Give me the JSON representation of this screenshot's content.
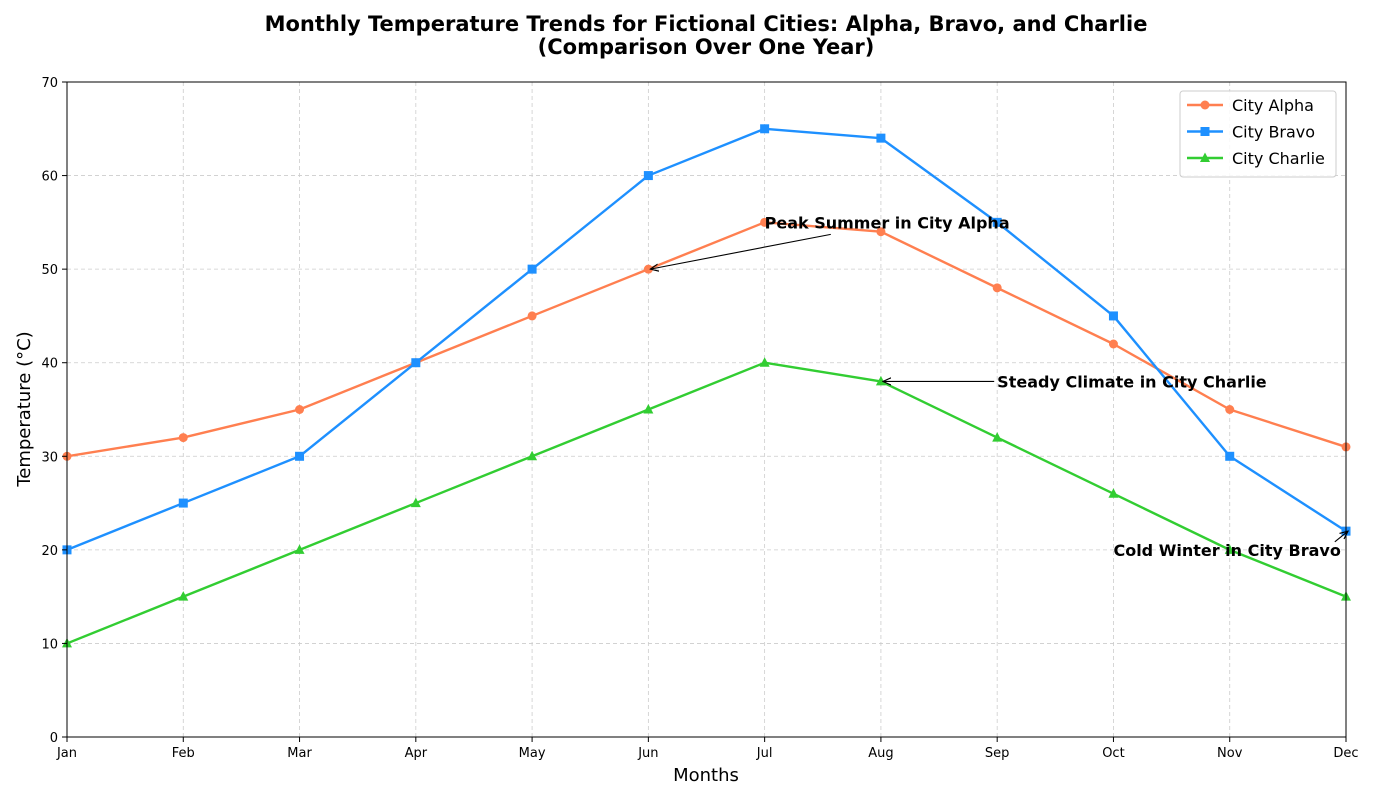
{
  "chart_data": {
    "type": "line",
    "title": "Monthly Temperature Trends for Fictional Cities: Alpha, Bravo, and Charlie",
    "subtitle": "(Comparison Over One Year)",
    "xlabel": "Months",
    "ylabel": "Temperature (°C)",
    "categories": [
      "Jan",
      "Feb",
      "Mar",
      "Apr",
      "May",
      "Jun",
      "Jul",
      "Aug",
      "Sep",
      "Oct",
      "Nov",
      "Dec"
    ],
    "ylim": [
      0,
      70
    ],
    "yticks": [
      0,
      10,
      20,
      30,
      40,
      50,
      60,
      70
    ],
    "grid": true,
    "legend_position": "top-right",
    "series": [
      {
        "name": "City Alpha",
        "color": "#FF7F50",
        "marker": "circle",
        "values": [
          30,
          32,
          35,
          40,
          45,
          50,
          55,
          54,
          48,
          42,
          35,
          31
        ]
      },
      {
        "name": "City Bravo",
        "color": "#1E90FF",
        "marker": "square",
        "values": [
          20,
          25,
          30,
          40,
          50,
          60,
          65,
          64,
          55,
          45,
          30,
          22
        ]
      },
      {
        "name": "City Charlie",
        "color": "#32CD32",
        "marker": "triangle",
        "values": [
          10,
          15,
          20,
          25,
          30,
          35,
          40,
          38,
          32,
          26,
          20,
          15
        ]
      }
    ],
    "annotations": [
      {
        "text": "Peak Summer in City Alpha",
        "point": [
          "Jun",
          50
        ],
        "text_at": [
          "Jul",
          55
        ]
      },
      {
        "text": "Steady Climate in City Charlie",
        "point": [
          "Aug",
          38
        ],
        "text_at": [
          "Sep",
          38
        ]
      },
      {
        "text": "Cold Winter in City Bravo",
        "point": [
          "Dec",
          22
        ],
        "text_at": [
          "Oct",
          20
        ]
      }
    ]
  }
}
